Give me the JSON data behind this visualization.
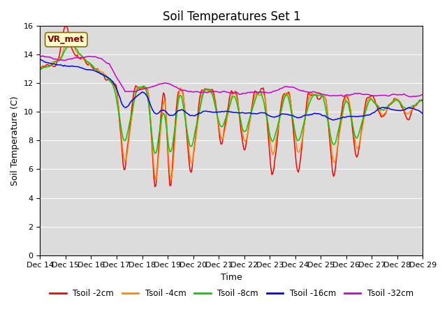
{
  "title": "Soil Temperatures Set 1",
  "xlabel": "Time",
  "ylabel": "Soil Temperature (C)",
  "ylim": [
    0,
    16
  ],
  "yticks": [
    0,
    2,
    4,
    6,
    8,
    10,
    12,
    14,
    16
  ],
  "annotation_text": "VR_met",
  "plot_bg_color": "#dcdcdc",
  "colors": {
    "Tsoil -2cm": "#ff0000",
    "Tsoil -4cm": "#ff8800",
    "Tsoil -8cm": "#00cc00",
    "Tsoil -16cm": "#0000ff",
    "Tsoil -32cm": "#cc00cc"
  },
  "xtick_labels": [
    "Dec 14",
    "Dec 15",
    "Dec 16",
    "Dec 17",
    "Dec 18",
    "Dec 19",
    "Dec 20",
    "Dec 21",
    "Dec 22",
    "Dec 23",
    "Dec 24",
    "Dec 25",
    "Dec 26",
    "Dec 27",
    "Dec 28",
    "Dec 29"
  ]
}
